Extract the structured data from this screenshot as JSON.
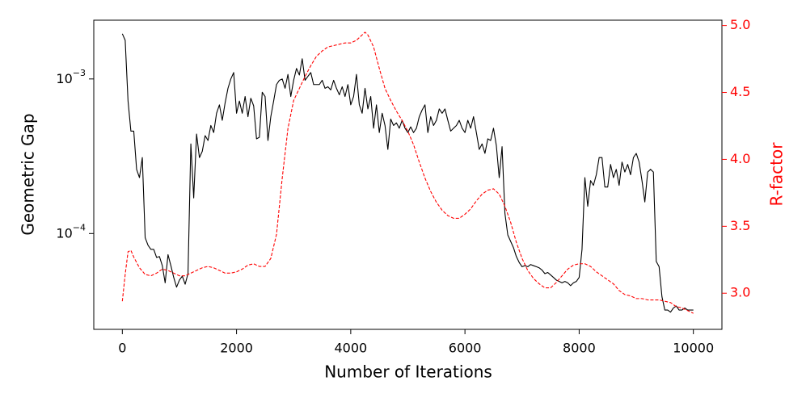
{
  "chart_data": {
    "type": "line",
    "xlabel": "Number of Iterations",
    "ylabel": "Geometric Gap",
    "y2label": "R-factor",
    "yscale": "log",
    "xlim": [
      -500,
      10500
    ],
    "xticks": [
      0,
      2000,
      4000,
      6000,
      8000,
      10000
    ],
    "ylim": [
      2.4e-05,
      0.0024
    ],
    "yticks": [
      {
        "value": 0.0001,
        "label": "10−4"
      },
      {
        "value": 0.001,
        "label": "10−3"
      }
    ],
    "y2lim": [
      2.73,
      5.04
    ],
    "y2ticks": [
      {
        "value": 3,
        "label": "3.0"
      },
      {
        "value": 3.5,
        "label": "3.5"
      },
      {
        "value": 4,
        "label": "4.0"
      },
      {
        "value": 4.5,
        "label": "4.5"
      },
      {
        "value": 5,
        "label": "5.0"
      }
    ],
    "y2color": "#ff0000",
    "series": [
      {
        "color": "#000000",
        "linestyle": "solid",
        "x": [
          0,
          50,
          100,
          150,
          200,
          250,
          300,
          350,
          400,
          450,
          500,
          550,
          600,
          650,
          700,
          750,
          800,
          850,
          900,
          950,
          1000,
          1050,
          1100,
          1150,
          1200,
          1250,
          1300,
          1350,
          1400,
          1450,
          1500,
          1550,
          1600,
          1650,
          1700,
          1750,
          1800,
          1850,
          1900,
          1950,
          2000,
          2050,
          2100,
          2150,
          2200,
          2250,
          2300,
          2350,
          2400,
          2450,
          2500,
          2550,
          2600,
          2650,
          2700,
          2750,
          2800,
          2850,
          2900,
          2950,
          3000,
          3050,
          3100,
          3150,
          3200,
          3250,
          3300,
          3350,
          3400,
          3450,
          3500,
          3550,
          3600,
          3650,
          3700,
          3750,
          3800,
          3850,
          3900,
          3950,
          4000,
          4050,
          4100,
          4150,
          4200,
          4250,
          4300,
          4350,
          4400,
          4450,
          4500,
          4550,
          4600,
          4650,
          4700,
          4750,
          4800,
          4850,
          4900,
          4950,
          5000,
          5050,
          5100,
          5150,
          5200,
          5250,
          5300,
          5350,
          5400,
          5450,
          5500,
          5550,
          5600,
          5650,
          5700,
          5750,
          5800,
          5850,
          5900,
          5950,
          6000,
          6050,
          6100,
          6150,
          6200,
          6250,
          6300,
          6350,
          6400,
          6450,
          6500,
          6550,
          6600,
          6650,
          6700,
          6750,
          6800,
          6850,
          6900,
          6950,
          7000,
          7050,
          7100,
          7150,
          7200,
          7250,
          7300,
          7350,
          7400,
          7450,
          7500,
          7550,
          7600,
          7650,
          7700,
          7750,
          7800,
          7850,
          7900,
          7950,
          8000,
          8050,
          8100,
          8150,
          8200,
          8250,
          8300,
          8350,
          8400,
          8450,
          8500,
          8550,
          8600,
          8650,
          8700,
          8750,
          8800,
          8850,
          8900,
          8950,
          9000,
          9050,
          9100,
          9150,
          9200,
          9250,
          9300,
          9350,
          9400,
          9450,
          9500,
          9550,
          9600,
          9650,
          9700,
          9750,
          9800,
          9850,
          9900,
          9950,
          10000
        ],
        "values": [
          0.00196,
          0.00178,
          0.00072,
          0.00046,
          0.00046,
          0.00026,
          0.00023,
          0.00031,
          9.4e-05,
          8.4e-05,
          7.9e-05,
          7.9e-05,
          7e-05,
          7.1e-05,
          6.2e-05,
          4.8e-05,
          7.3e-05,
          6.2e-05,
          5.2e-05,
          4.5e-05,
          5e-05,
          5.3e-05,
          4.7e-05,
          5.5e-05,
          0.00038,
          0.00017,
          0.00044,
          0.00031,
          0.00034,
          0.00043,
          0.0004,
          0.0005,
          0.00045,
          0.0006,
          0.00068,
          0.00054,
          0.0007,
          0.00087,
          0.001,
          0.0011,
          0.0006,
          0.00072,
          0.0006,
          0.00077,
          0.00057,
          0.00075,
          0.00067,
          0.00041,
          0.00042,
          0.00082,
          0.00077,
          0.0004,
          0.00057,
          0.00072,
          0.00092,
          0.00098,
          0.001,
          0.00087,
          0.00107,
          0.00077,
          0.00098,
          0.00117,
          0.00106,
          0.00135,
          0.00098,
          0.00104,
          0.0011,
          0.00092,
          0.00092,
          0.00092,
          0.00098,
          0.00087,
          0.00089,
          0.00085,
          0.00098,
          0.00087,
          0.00079,
          0.00089,
          0.00077,
          0.00092,
          0.00068,
          0.00077,
          0.00107,
          0.00068,
          0.0006,
          0.00087,
          0.00064,
          0.00077,
          0.00048,
          0.00068,
          0.00045,
          0.0006,
          0.0005,
          0.00035,
          0.00055,
          0.0005,
          0.00052,
          0.00048,
          0.00054,
          0.00048,
          0.00045,
          0.00049,
          0.00045,
          0.00048,
          0.00057,
          0.00063,
          0.00068,
          0.00045,
          0.00057,
          0.0005,
          0.00054,
          0.00064,
          0.0006,
          0.00064,
          0.00054,
          0.00046,
          0.00048,
          0.0005,
          0.00054,
          0.00048,
          0.00045,
          0.00054,
          0.00048,
          0.00057,
          0.00045,
          0.00035,
          0.00038,
          0.00033,
          0.00041,
          0.0004,
          0.00048,
          0.00037,
          0.00023,
          0.000365,
          0.000135,
          9.8e-05,
          8.9e-05,
          8.1e-05,
          7.1e-05,
          6.5e-05,
          6.1e-05,
          6.2e-05,
          6.1e-05,
          6.3e-05,
          6.2e-05,
          6.1e-05,
          6e-05,
          5.8e-05,
          5.5e-05,
          5.6e-05,
          5.4e-05,
          5.2e-05,
          5e-05,
          4.9e-05,
          4.8e-05,
          4.9e-05,
          4.8e-05,
          4.6e-05,
          4.8e-05,
          4.9e-05,
          5.2e-05,
          7.9e-05,
          0.00023,
          0.00015,
          0.00022,
          0.000205,
          0.00024,
          0.00031,
          0.00031,
          0.0002,
          0.0002,
          0.00028,
          0.00023,
          0.00026,
          0.000205,
          0.00029,
          0.00025,
          0.00028,
          0.00024,
          0.00031,
          0.00033,
          0.00029,
          0.00022,
          0.00016,
          0.00025,
          0.00026,
          0.00025,
          6.6e-05,
          6.1e-05,
          3.9e-05,
          3.2e-05,
          3.2e-05,
          3.1e-05,
          3.3e-05,
          3.4e-05,
          3.2e-05,
          3.2e-05,
          3.3e-05,
          3.2e-05,
          3.2e-05,
          3.2e-05
        ]
      },
      {
        "color": "#ff0000",
        "linestyle": "dashed",
        "axis": "y2",
        "x": [
          0,
          50,
          100,
          150,
          200,
          300,
          400,
          500,
          600,
          700,
          800,
          900,
          1000,
          1100,
          1200,
          1300,
          1400,
          1500,
          1600,
          1700,
          1800,
          1900,
          2000,
          2100,
          2200,
          2300,
          2400,
          2500,
          2600,
          2700,
          2800,
          2900,
          3000,
          3100,
          3200,
          3300,
          3400,
          3500,
          3600,
          3700,
          3800,
          3900,
          4000,
          4100,
          4200,
          4250,
          4300,
          4400,
          4500,
          4600,
          4700,
          4800,
          4900,
          5000,
          5100,
          5200,
          5300,
          5400,
          5500,
          5600,
          5700,
          5800,
          5900,
          6000,
          6100,
          6200,
          6300,
          6400,
          6500,
          6600,
          6700,
          6800,
          6900,
          7000,
          7100,
          7200,
          7300,
          7400,
          7500,
          7600,
          7700,
          7800,
          7900,
          8000,
          8100,
          8200,
          8300,
          8400,
          8500,
          8600,
          8700,
          8800,
          8900,
          9000,
          9100,
          9200,
          9300,
          9400,
          9500,
          9600,
          9700,
          9800,
          9900,
          10000
        ],
        "values": [
          2.94,
          3.14,
          3.31,
          3.32,
          3.27,
          3.19,
          3.14,
          3.13,
          3.15,
          3.18,
          3.17,
          3.15,
          3.13,
          3.13,
          3.15,
          3.17,
          3.19,
          3.2,
          3.19,
          3.17,
          3.15,
          3.15,
          3.16,
          3.18,
          3.21,
          3.22,
          3.2,
          3.2,
          3.26,
          3.44,
          3.86,
          4.23,
          4.44,
          4.53,
          4.62,
          4.7,
          4.77,
          4.81,
          4.84,
          4.85,
          4.86,
          4.87,
          4.87,
          4.89,
          4.93,
          4.95,
          4.93,
          4.84,
          4.68,
          4.53,
          4.44,
          4.36,
          4.29,
          4.21,
          4.11,
          3.98,
          3.86,
          3.76,
          3.68,
          3.62,
          3.58,
          3.56,
          3.56,
          3.59,
          3.63,
          3.69,
          3.74,
          3.77,
          3.78,
          3.74,
          3.65,
          3.53,
          3.38,
          3.26,
          3.17,
          3.11,
          3.07,
          3.04,
          3.04,
          3.08,
          3.13,
          3.18,
          3.21,
          3.22,
          3.22,
          3.2,
          3.16,
          3.13,
          3.1,
          3.07,
          3.02,
          2.99,
          2.98,
          2.96,
          2.96,
          2.95,
          2.95,
          2.95,
          2.94,
          2.93,
          2.9,
          2.89,
          2.87,
          2.85
        ]
      }
    ]
  }
}
